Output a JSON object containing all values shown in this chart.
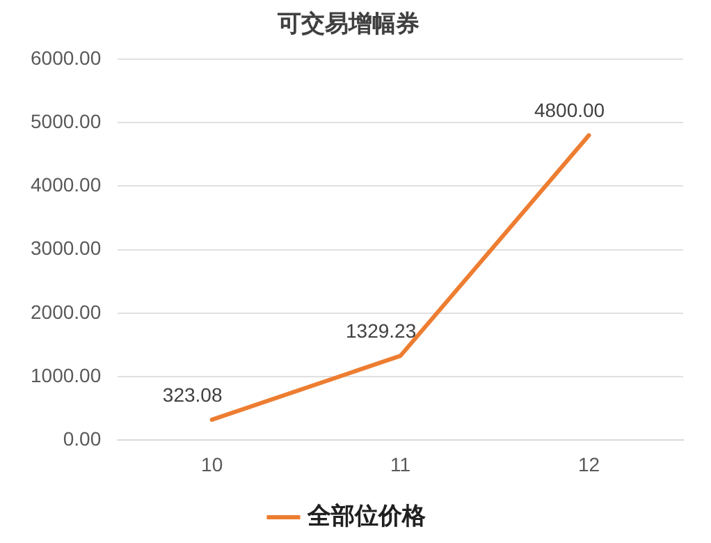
{
  "chart_data": {
    "type": "line",
    "title": "可交易增幅券",
    "categories": [
      "10",
      "11",
      "12"
    ],
    "series": [
      {
        "name": "全部位价格",
        "color": "#ed7d31",
        "values": [
          323.08,
          1329.23,
          4800
        ],
        "value_labels": [
          "323.08",
          "1329.23",
          "4800.00"
        ]
      }
    ],
    "ylim": [
      0,
      6000
    ],
    "yticks": [
      {
        "value": 0,
        "label": "0.00"
      },
      {
        "value": 1000,
        "label": "1000.00"
      },
      {
        "value": 2000,
        "label": "2000.00"
      },
      {
        "value": 3000,
        "label": "3000.00"
      },
      {
        "value": 4000,
        "label": "4000.00"
      },
      {
        "value": 5000,
        "label": "5000.00"
      },
      {
        "value": 6000,
        "label": "6000.00"
      }
    ],
    "grid": "y",
    "legend": "bottom",
    "marker": "none",
    "line_style": "solid"
  }
}
